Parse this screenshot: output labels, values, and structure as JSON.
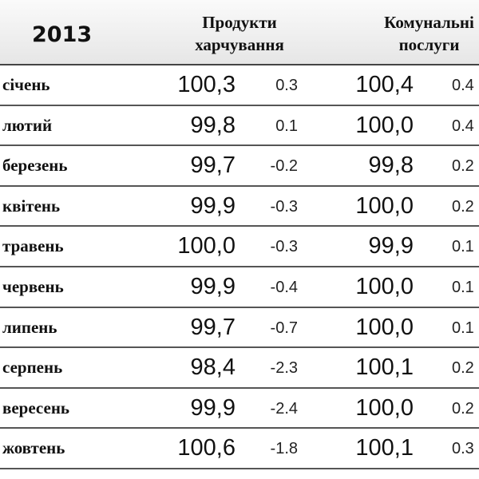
{
  "header": {
    "year": "2013",
    "columns": [
      "Продукти харчування",
      "Комунальні послуги"
    ]
  },
  "rows": [
    {
      "month": "січень",
      "food": "100,3",
      "food_change": "0.3",
      "utilities": "100,4",
      "utilities_change": "0.4"
    },
    {
      "month": "лютий",
      "food": "99,8",
      "food_change": "0.1",
      "utilities": "100,0",
      "utilities_change": "0.4"
    },
    {
      "month": "березень",
      "food": "99,7",
      "food_change": "-0.2",
      "utilities": "99,8",
      "utilities_change": "0.2"
    },
    {
      "month": "квітень",
      "food": "99,9",
      "food_change": "-0.3",
      "utilities": "100,0",
      "utilities_change": "0.2"
    },
    {
      "month": "травень",
      "food": "100,0",
      "food_change": "-0.3",
      "utilities": "99,9",
      "utilities_change": "0.1"
    },
    {
      "month": "червень",
      "food": "99,9",
      "food_change": "-0.4",
      "utilities": "100,0",
      "utilities_change": "0.1"
    },
    {
      "month": "липень",
      "food": "99,7",
      "food_change": "-0.7",
      "utilities": "100,0",
      "utilities_change": "0.1"
    },
    {
      "month": "серпень",
      "food": "98,4",
      "food_change": "-2.3",
      "utilities": "100,1",
      "utilities_change": "0.2"
    },
    {
      "month": "вересень",
      "food": "99,9",
      "food_change": "-2.4",
      "utilities": "100,0",
      "utilities_change": "0.2"
    },
    {
      "month": "жовтень",
      "food": "100,6",
      "food_change": "-1.8",
      "utilities": "100,1",
      "utilities_change": "0.3"
    }
  ]
}
